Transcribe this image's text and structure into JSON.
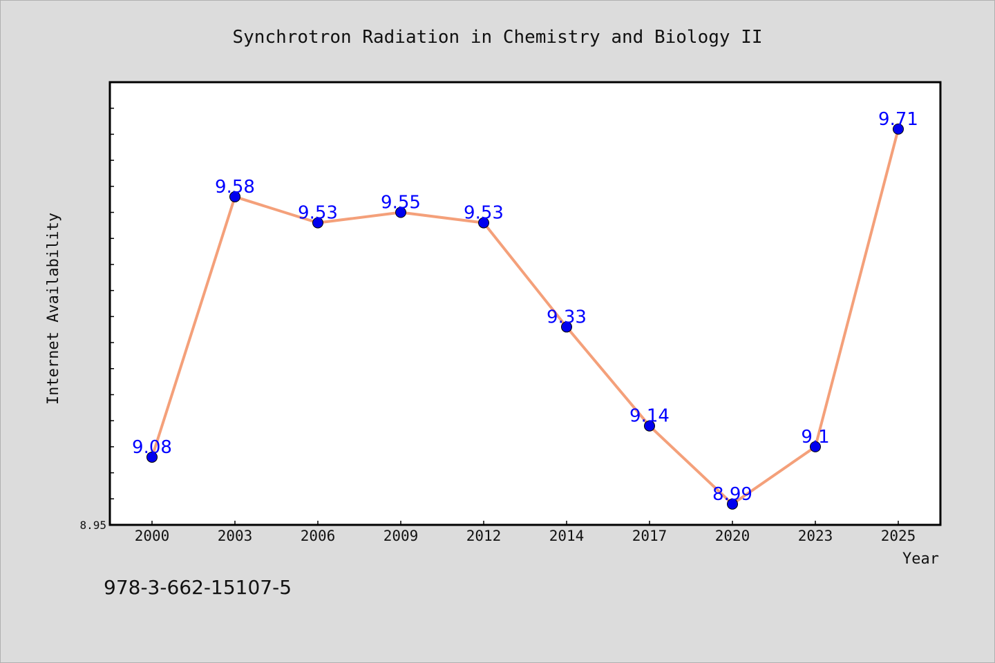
{
  "chart_data": {
    "type": "line",
    "title": "Synchrotron Radiation in Chemistry and Biology II",
    "xlabel": "Year",
    "ylabel": "Internet Availability",
    "categories": [
      "2000",
      "2003",
      "2006",
      "2009",
      "2012",
      "2014",
      "2017",
      "2020",
      "2023",
      "2025"
    ],
    "series": [
      {
        "values": [
          9.08,
          9.58,
          9.53,
          9.55,
          9.53,
          9.33,
          9.14,
          8.99,
          9.1,
          9.71
        ],
        "labels": [
          "9.08",
          "9.58",
          "9.53",
          "9.55",
          "9.53",
          "9.33",
          "9.14",
          "8.99",
          "9.1",
          "9.71"
        ]
      }
    ],
    "ylim": [
      8.95,
      9.8
    ],
    "y_min_label": "8.95",
    "grid": false,
    "legend": "none",
    "colors": {
      "line": "#f4a07a",
      "marker": "#0000ee",
      "data_label": "#0000ff",
      "background": "#dcdcdc",
      "plot_background": "#ffffff"
    }
  },
  "footnote": "978-3-662-15107-5"
}
